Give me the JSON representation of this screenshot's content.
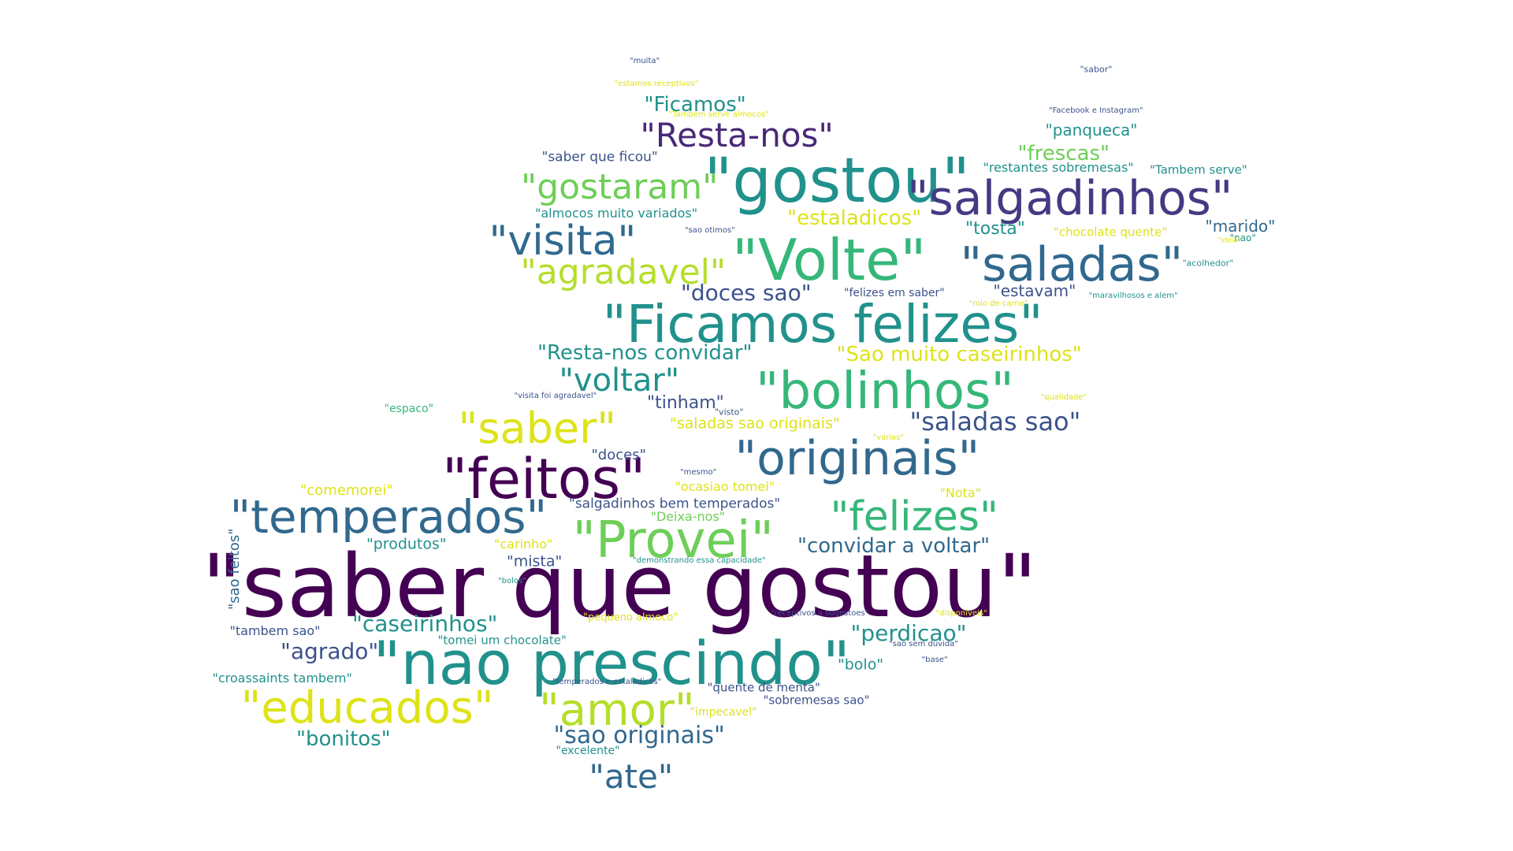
{
  "palette": {
    "dark_purple": "#440154",
    "indigo": "#3b528b",
    "slate": "#31688e",
    "teal": "#21918c",
    "green": "#35b779",
    "light_green": "#6ece58",
    "lime": "#b5de2b",
    "yellow": "#dde318"
  },
  "words": [
    {
      "text": "\"saber que gostou\"",
      "color": "#440154"
    },
    {
      "text": "\"nao prescindo\"",
      "color": "#21918c"
    },
    {
      "text": "\"Ficamos felizes\"",
      "color": "#21918c"
    },
    {
      "text": "\"gostou\"",
      "color": "#21918c"
    },
    {
      "text": "\"Volte\"",
      "color": "#35b779"
    },
    {
      "text": "\"originais\"",
      "color": "#31688e"
    },
    {
      "text": "\"feitos\"",
      "color": "#440154"
    },
    {
      "text": "\"Provei\"",
      "color": "#6ece58"
    },
    {
      "text": "\"salgadinhos\"",
      "color": "#443983"
    },
    {
      "text": "\"saladas\"",
      "color": "#31688e"
    },
    {
      "text": "\"bolinhos\"",
      "color": "#35b779"
    },
    {
      "text": "\"temperados\"",
      "color": "#31688e"
    },
    {
      "text": "\"educados\"",
      "color": "#dde318"
    },
    {
      "text": "\"felizes\"",
      "color": "#35b779"
    },
    {
      "text": "\"amor\"",
      "color": "#b5de2b"
    },
    {
      "text": "\"saber\"",
      "color": "#dde318"
    },
    {
      "text": "\"visita\"",
      "color": "#31688e"
    },
    {
      "text": "\"gostaram\"",
      "color": "#6ece58"
    },
    {
      "text": "\"agradavel\"",
      "color": "#b5de2b"
    },
    {
      "text": "\"Resta-nos\"",
      "color": "#482878"
    },
    {
      "text": "\"voltar\"",
      "color": "#21918c"
    },
    {
      "text": "\"ate\"",
      "color": "#31688e"
    },
    {
      "text": "\"saladas sao\"",
      "color": "#3b528b"
    },
    {
      "text": "\"sao originais\"",
      "color": "#31688e"
    },
    {
      "text": "\"caseirinhos\"",
      "color": "#21918c"
    },
    {
      "text": "\"agrado\"",
      "color": "#3b528b"
    },
    {
      "text": "\"perdicao\"",
      "color": "#21918c"
    },
    {
      "text": "\"convidar a voltar\"",
      "color": "#31688e"
    },
    {
      "text": "\"Sao muito caseirinhos\"",
      "color": "#dde318"
    },
    {
      "text": "\"Resta-nos convidar\"",
      "color": "#21918c"
    },
    {
      "text": "\"doces sao\"",
      "color": "#3b528b"
    },
    {
      "text": "\"estaladicos\"",
      "color": "#dde318"
    },
    {
      "text": "\"frescas\"",
      "color": "#6ece58"
    },
    {
      "text": "\"Ficamos\"",
      "color": "#21918c"
    },
    {
      "text": "\"bonitos\"",
      "color": "#21918c"
    },
    {
      "text": "\"tinham\"",
      "color": "#3b528b"
    },
    {
      "text": "\"tosta\"",
      "color": "#21918c"
    },
    {
      "text": "\"marido\"",
      "color": "#31688e"
    },
    {
      "text": "\"panqueca\"",
      "color": "#21918c"
    },
    {
      "text": "\"estavam\"",
      "color": "#3b528b"
    },
    {
      "text": "\"saladas sao originais\"",
      "color": "#dde318"
    },
    {
      "text": "\"salgadinhos bem temperados\"",
      "color": "#3b528b"
    },
    {
      "text": "\"saber que ficou\"",
      "color": "#3b528b"
    },
    {
      "text": "\"almocos muito variados\"",
      "color": "#21918c"
    },
    {
      "text": "\"restantes sobremesas\"",
      "color": "#21918c"
    },
    {
      "text": "\"Tambem serve\"",
      "color": "#21918c"
    },
    {
      "text": "\"chocolate quente\"",
      "color": "#dde318"
    },
    {
      "text": "\"mista\"",
      "color": "#3b528b"
    },
    {
      "text": "\"produtos\"",
      "color": "#21918c"
    },
    {
      "text": "\"comemorei\"",
      "color": "#dde318"
    },
    {
      "text": "\"doces\"",
      "color": "#3b528b"
    },
    {
      "text": "\"bolo\"",
      "color": "#21918c"
    },
    {
      "text": "\"Deixa-nos\"",
      "color": "#6ece58"
    },
    {
      "text": "\"ocasiao tomei\"",
      "color": "#dde318"
    },
    {
      "text": "\"carinho\"",
      "color": "#dde318"
    },
    {
      "text": "\"Nota\"",
      "color": "#dde318"
    },
    {
      "text": "\"quente de menta\"",
      "color": "#3b528b"
    },
    {
      "text": "\"sobremesas sao\"",
      "color": "#3b528b"
    },
    {
      "text": "\"tomei um chocolate\"",
      "color": "#21918c"
    },
    {
      "text": "\"tambem sao\"",
      "color": "#3b528b"
    },
    {
      "text": "\"croassaints tambem\"",
      "color": "#21918c"
    },
    {
      "text": "\"impecavel\"",
      "color": "#dde318"
    },
    {
      "text": "\"excelente\"",
      "color": "#21918c"
    },
    {
      "text": "\"sao feitos\"",
      "color": "#31688e"
    },
    {
      "text": "\"felizes em saber\"",
      "color": "#3b528b"
    },
    {
      "text": "\"espaco\"",
      "color": "#35b779"
    },
    {
      "text": "\"pequeno almoco\"",
      "color": "#dde318"
    },
    {
      "text": "\"sabor\"",
      "color": "#3b528b"
    },
    {
      "text": "\"muita\"",
      "color": "#3b528b"
    },
    {
      "text": "\"estamos receptivos\"",
      "color": "#dde318"
    },
    {
      "text": "\"Tambem serve almocos\"",
      "color": "#dde318"
    },
    {
      "text": "\"Facebook e Instagram\"",
      "color": "#3b528b"
    },
    {
      "text": "\"sao otimos\"",
      "color": "#3b528b"
    },
    {
      "text": "\"nao\"",
      "color": "#21918c"
    },
    {
      "text": "\"ideia\"",
      "color": "#dde318"
    },
    {
      "text": "\"acolhedor\"",
      "color": "#21918c"
    },
    {
      "text": "\"maravilhosos e alem\"",
      "color": "#21918c"
    },
    {
      "text": "\"rolo de carne\"",
      "color": "#dde318"
    },
    {
      "text": "\"visita foi agradavel\"",
      "color": "#3b528b"
    },
    {
      "text": "\"visto\"",
      "color": "#3b528b"
    },
    {
      "text": "\"qualidade\"",
      "color": "#dde318"
    },
    {
      "text": "\"varias\"",
      "color": "#dde318"
    },
    {
      "text": "\"mesmo\"",
      "color": "#3b528b"
    },
    {
      "text": "\"demonstrando essa capacidade\"",
      "color": "#21918c"
    },
    {
      "text": "\"bolos\"",
      "color": "#21918c"
    },
    {
      "text": "\"receptivos a sugestoes\"",
      "color": "#3b528b"
    },
    {
      "text": "\"disponiveis\"",
      "color": "#dde318"
    },
    {
      "text": "\"sao sem duvida\"",
      "color": "#3b528b"
    },
    {
      "text": "\"base\"",
      "color": "#3b528b"
    },
    {
      "text": "\"temperados e estaladicos\"",
      "color": "#3b528b"
    }
  ]
}
